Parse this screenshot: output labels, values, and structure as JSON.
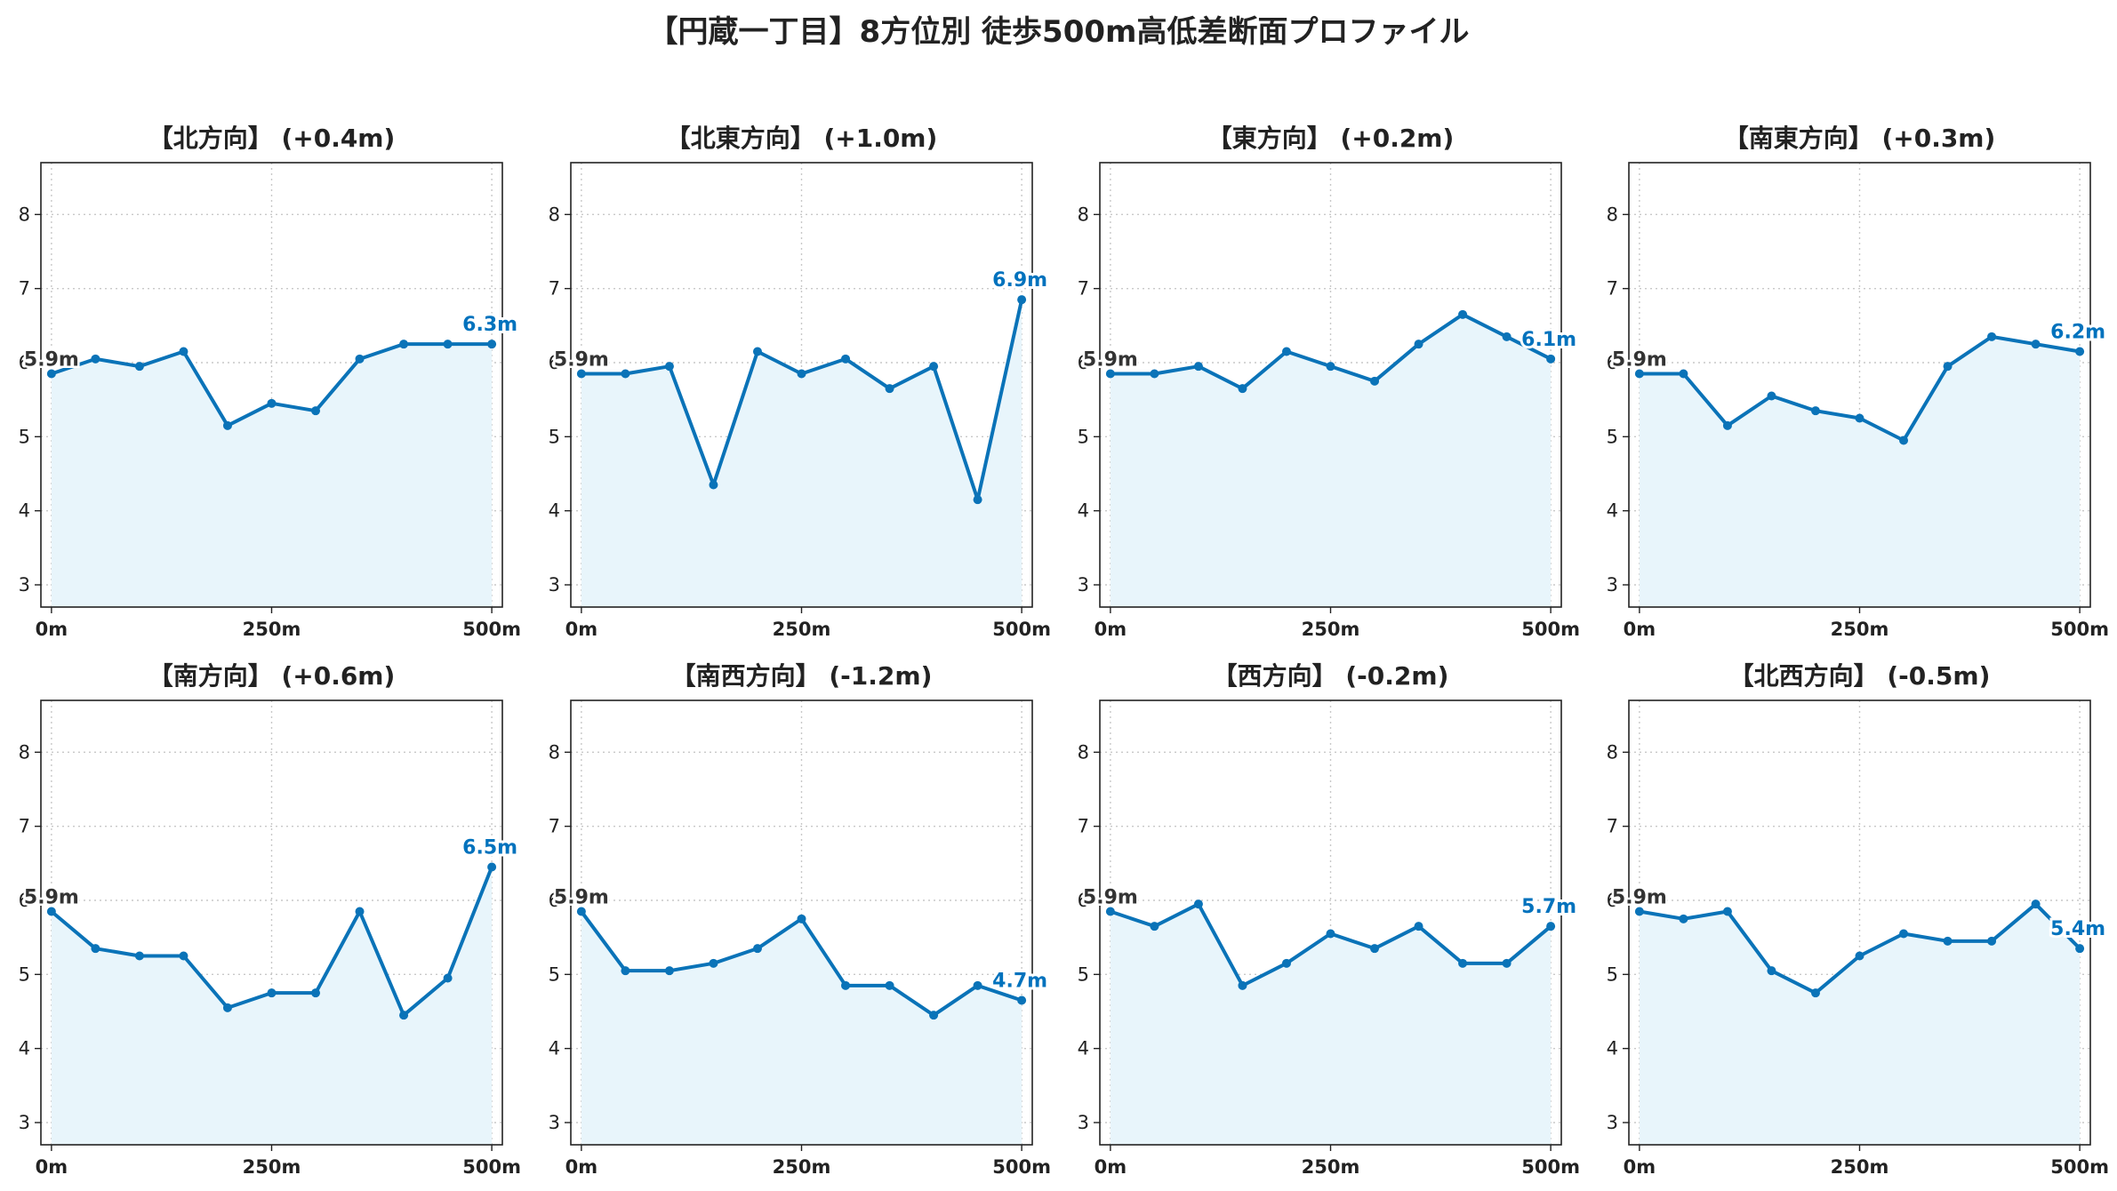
{
  "title": "【円蔵一丁目】8方位別 徒歩500m高低差断面プロファイル",
  "colors": {
    "line": "#0a73b8",
    "fill": "#e8f5fb",
    "grid": "#c8c8c8",
    "end_label": "#0072bd",
    "start_label": "#333333"
  },
  "chart_data": [
    {
      "type": "area",
      "title": "【北方向】 (+0.4m)",
      "x": [
        0,
        50,
        100,
        150,
        200,
        250,
        300,
        350,
        400,
        450,
        500
      ],
      "y": [
        5.85,
        6.05,
        5.95,
        6.15,
        5.15,
        5.45,
        5.35,
        6.05,
        6.25,
        6.25,
        6.25
      ],
      "start_label": "5.9m",
      "end_label": "6.3m",
      "xticks": [
        "0m",
        "250m",
        "500m"
      ],
      "yticks": [
        3,
        4,
        5,
        6,
        7,
        8
      ],
      "ylim": [
        2.7,
        8.7
      ],
      "xlim": [
        -12,
        512
      ],
      "grid": true
    },
    {
      "type": "area",
      "title": "【北東方向】 (+1.0m)",
      "x": [
        0,
        50,
        100,
        150,
        200,
        250,
        300,
        350,
        400,
        450,
        500
      ],
      "y": [
        5.85,
        5.85,
        5.95,
        4.35,
        6.15,
        5.85,
        6.05,
        5.65,
        5.95,
        4.15,
        6.85
      ],
      "start_label": "5.9m",
      "end_label": "6.9m",
      "xticks": [
        "0m",
        "250m",
        "500m"
      ],
      "yticks": [
        3,
        4,
        5,
        6,
        7,
        8
      ],
      "ylim": [
        2.7,
        8.7
      ],
      "xlim": [
        -12,
        512
      ],
      "grid": true
    },
    {
      "type": "area",
      "title": "【東方向】 (+0.2m)",
      "x": [
        0,
        50,
        100,
        150,
        200,
        250,
        300,
        350,
        400,
        450,
        500
      ],
      "y": [
        5.85,
        5.85,
        5.95,
        5.65,
        6.15,
        5.95,
        5.75,
        6.25,
        6.65,
        6.35,
        6.05
      ],
      "start_label": "5.9m",
      "end_label": "6.1m",
      "xticks": [
        "0m",
        "250m",
        "500m"
      ],
      "yticks": [
        3,
        4,
        5,
        6,
        7,
        8
      ],
      "ylim": [
        2.7,
        8.7
      ],
      "xlim": [
        -12,
        512
      ],
      "grid": true
    },
    {
      "type": "area",
      "title": "【南東方向】 (+0.3m)",
      "x": [
        0,
        50,
        100,
        150,
        200,
        250,
        300,
        350,
        400,
        450,
        500
      ],
      "y": [
        5.85,
        5.85,
        5.15,
        5.55,
        5.35,
        5.25,
        4.95,
        5.95,
        6.35,
        6.25,
        6.15
      ],
      "start_label": "5.9m",
      "end_label": "6.2m",
      "xticks": [
        "0m",
        "250m",
        "500m"
      ],
      "yticks": [
        3,
        4,
        5,
        6,
        7,
        8
      ],
      "ylim": [
        2.7,
        8.7
      ],
      "xlim": [
        -12,
        512
      ],
      "grid": true
    },
    {
      "type": "area",
      "title": "【南方向】 (+0.6m)",
      "x": [
        0,
        50,
        100,
        150,
        200,
        250,
        300,
        350,
        400,
        450,
        500
      ],
      "y": [
        5.85,
        5.35,
        5.25,
        5.25,
        4.55,
        4.75,
        4.75,
        5.85,
        4.45,
        4.95,
        6.45
      ],
      "start_label": "5.9m",
      "end_label": "6.5m",
      "xticks": [
        "0m",
        "250m",
        "500m"
      ],
      "yticks": [
        3,
        4,
        5,
        6,
        7,
        8
      ],
      "ylim": [
        2.7,
        8.7
      ],
      "xlim": [
        -12,
        512
      ],
      "grid": true
    },
    {
      "type": "area",
      "title": "【南西方向】 (-1.2m)",
      "x": [
        0,
        50,
        100,
        150,
        200,
        250,
        300,
        350,
        400,
        450,
        500
      ],
      "y": [
        5.85,
        5.05,
        5.05,
        5.15,
        5.35,
        5.75,
        4.85,
        4.85,
        4.45,
        4.85,
        4.65
      ],
      "start_label": "5.9m",
      "end_label": "4.7m",
      "xticks": [
        "0m",
        "250m",
        "500m"
      ],
      "yticks": [
        3,
        4,
        5,
        6,
        7,
        8
      ],
      "ylim": [
        2.7,
        8.7
      ],
      "xlim": [
        -12,
        512
      ],
      "grid": true
    },
    {
      "type": "area",
      "title": "【西方向】 (-0.2m)",
      "x": [
        0,
        50,
        100,
        150,
        200,
        250,
        300,
        350,
        400,
        450,
        500
      ],
      "y": [
        5.85,
        5.65,
        5.95,
        4.85,
        5.15,
        5.55,
        5.35,
        5.65,
        5.15,
        5.15,
        5.65
      ],
      "start_label": "5.9m",
      "end_label": "5.7m",
      "xticks": [
        "0m",
        "250m",
        "500m"
      ],
      "yticks": [
        3,
        4,
        5,
        6,
        7,
        8
      ],
      "ylim": [
        2.7,
        8.7
      ],
      "xlim": [
        -12,
        512
      ],
      "grid": true
    },
    {
      "type": "area",
      "title": "【北西方向】 (-0.5m)",
      "x": [
        0,
        50,
        100,
        150,
        200,
        250,
        300,
        350,
        400,
        450,
        500
      ],
      "y": [
        5.85,
        5.75,
        5.85,
        5.05,
        4.75,
        5.25,
        5.55,
        5.45,
        5.45,
        5.95,
        5.35
      ],
      "start_label": "5.9m",
      "end_label": "5.4m",
      "xticks": [
        "0m",
        "250m",
        "500m"
      ],
      "yticks": [
        3,
        4,
        5,
        6,
        7,
        8
      ],
      "ylim": [
        2.7,
        8.7
      ],
      "xlim": [
        -12,
        512
      ],
      "grid": true
    }
  ]
}
